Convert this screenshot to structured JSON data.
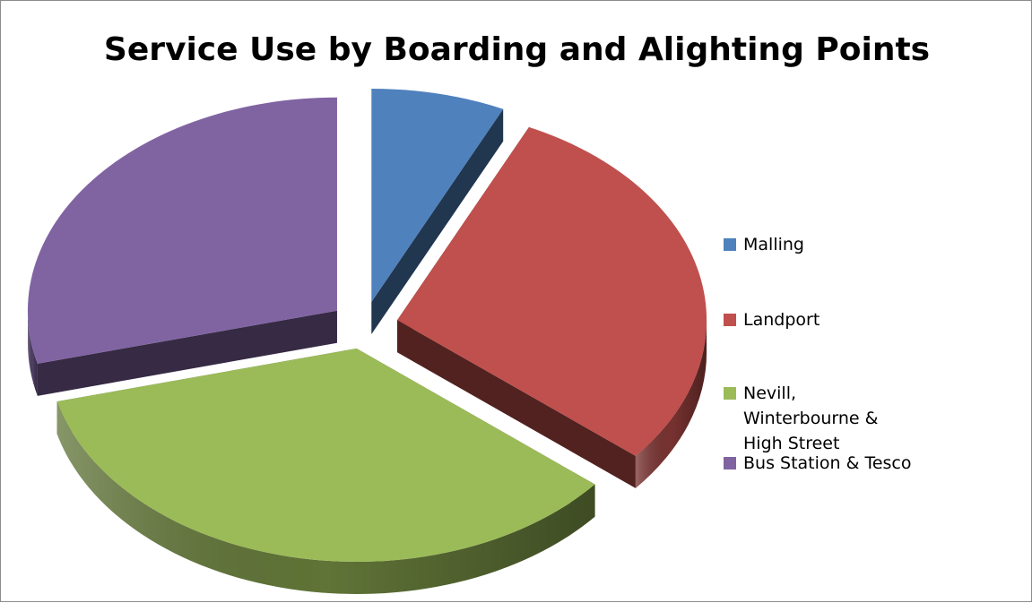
{
  "chart_data": {
    "type": "pie",
    "title": "Service Use by Boarding and Alighting Points",
    "categories": [
      "Malling",
      "Landport",
      "Nevill, Winterbourne & High Street",
      "Bus Station & Tesco"
    ],
    "values": [
      7,
      29,
      35,
      29
    ],
    "colors": [
      "#4f81bd",
      "#c0504d",
      "#9bbb59",
      "#8064a2"
    ],
    "exploded": true,
    "style": "3d",
    "legend_position": "right"
  }
}
